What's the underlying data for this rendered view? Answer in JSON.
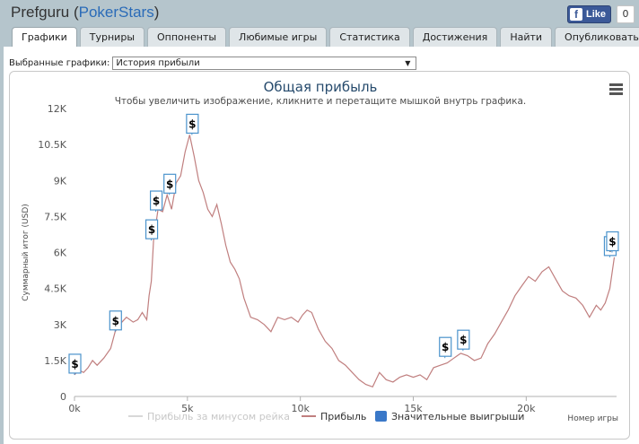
{
  "header": {
    "app_name": "Prefguru",
    "paren_open": "(",
    "site_name": "PokerStars",
    "paren_close": ")"
  },
  "like": {
    "label": "Like",
    "count": "0",
    "fb_glyph": "f"
  },
  "tabs": [
    {
      "label": "Графики",
      "active": true
    },
    {
      "label": "Турниры"
    },
    {
      "label": "Оппоненты"
    },
    {
      "label": "Любимые игры"
    },
    {
      "label": "Статистика"
    },
    {
      "label": "Достижения"
    },
    {
      "label": "Найти"
    },
    {
      "label": "Опубликовать"
    }
  ],
  "selector": {
    "label": "Выбранные графики:",
    "value": "История прибыли",
    "arrow": "▼"
  },
  "colors": {
    "background": "#b5c5cc",
    "profit_line": "#c07f7f",
    "rake_line": "#d8d8d8",
    "marker_border": "#4b93cc",
    "legend_marker": "#3a78c8"
  },
  "chart_data": {
    "type": "line",
    "title": "Общая прибыль",
    "subtitle": "Чтобы увеличить изображение, кликните и перетащите мышкой внутрь графика.",
    "ylabel": "Суммарный итог (USD)",
    "xlabel": "Номер игры",
    "x_ticks": [
      0,
      5000,
      10000,
      15000,
      20000
    ],
    "x_tick_labels": [
      "0k",
      "5k",
      "10k",
      "15k",
      "20k"
    ],
    "xlim": [
      0,
      24000
    ],
    "y_ticks": [
      0,
      1500,
      3000,
      4500,
      6000,
      7500,
      9000,
      10500,
      12000
    ],
    "y_tick_labels": [
      "0",
      "1.5K",
      "3K",
      "4.5K",
      "6K",
      "7.5K",
      "9K",
      "10.5K",
      "12K"
    ],
    "ylim": [
      0,
      12000
    ],
    "grid": "none",
    "menu_icon": "hamburger-icon",
    "series": [
      {
        "name": "Прибыль за минусом рейка",
        "visible": false,
        "x": [],
        "y": []
      },
      {
        "name": "Прибыль",
        "visible": true,
        "x": [
          0,
          200,
          400,
          600,
          800,
          1000,
          1300,
          1600,
          1800,
          2000,
          2300,
          2600,
          2800,
          3000,
          3200,
          3300,
          3400,
          3500,
          3700,
          3900,
          4100,
          4300,
          4500,
          4700,
          4900,
          5100,
          5300,
          5500,
          5700,
          5900,
          6100,
          6300,
          6500,
          6700,
          6900,
          7100,
          7300,
          7500,
          7800,
          8100,
          8400,
          8700,
          9000,
          9300,
          9600,
          9900,
          10100,
          10300,
          10500,
          10800,
          11100,
          11400,
          11700,
          12000,
          12300,
          12600,
          12900,
          13200,
          13500,
          13800,
          14100,
          14400,
          14700,
          15000,
          15300,
          15600,
          15900,
          16200,
          16500,
          16800,
          17100,
          17400,
          17700,
          18000,
          18300,
          18600,
          18900,
          19200,
          19500,
          19800,
          20100,
          20400,
          20700,
          21000,
          21300,
          21600,
          21900,
          22200,
          22500,
          22800,
          23100,
          23300,
          23500,
          23700,
          23900
        ],
        "y": [
          900,
          1100,
          1000,
          1200,
          1500,
          1300,
          1600,
          2000,
          2700,
          3000,
          3300,
          3100,
          3200,
          3500,
          3200,
          4200,
          4800,
          6500,
          7800,
          7700,
          8400,
          7800,
          8900,
          9200,
          10200,
          10900,
          10000,
          9000,
          8500,
          7800,
          7500,
          8000,
          7200,
          6300,
          5600,
          5300,
          4900,
          4100,
          3300,
          3200,
          3000,
          2700,
          3300,
          3200,
          3300,
          3100,
          3400,
          3600,
          3500,
          2800,
          2300,
          2000,
          1500,
          1300,
          1000,
          700,
          500,
          400,
          1000,
          700,
          600,
          800,
          900,
          800,
          900,
          700,
          1200,
          1300,
          1400,
          1600,
          1800,
          1700,
          1500,
          1600,
          2200,
          2600,
          3100,
          3600,
          4200,
          4600,
          5000,
          4800,
          5200,
          5400,
          4900,
          4400,
          4200,
          4100,
          3800,
          3300,
          3800,
          3600,
          3900,
          4500,
          5800
        ]
      }
    ],
    "big_wins": {
      "name": "Значительные выигрыши",
      "marker_label": "$",
      "x": [
        0,
        1800,
        3400,
        3600,
        4200,
        5200,
        16400,
        17200,
        23700,
        23800
      ],
      "y": [
        900,
        2700,
        6500,
        7700,
        8400,
        10900,
        1600,
        1900,
        5800,
        6000
      ]
    }
  }
}
